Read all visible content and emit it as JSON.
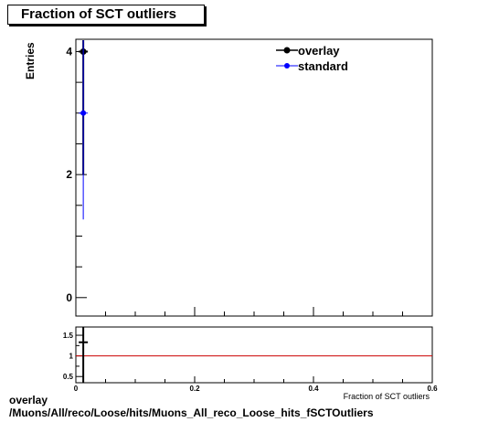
{
  "chart_data": {
    "type": "scatter",
    "title": "Fraction of SCT outliers",
    "ylabel": "Entries",
    "xlabel": "Fraction of SCT outliers",
    "xlim": [
      0,
      0.6
    ],
    "ylim": [
      -0.3,
      4.2
    ],
    "y_ticks": [
      0,
      2,
      4
    ],
    "x_ticks": [
      0,
      0.2,
      0.4,
      0.6
    ],
    "legend_position": "top-right",
    "series": [
      {
        "name": "overlay",
        "color": "#000000",
        "points": [
          {
            "x": 0.0125,
            "y": 4,
            "err": 2
          }
        ]
      },
      {
        "name": "standard",
        "color": "#0000ff",
        "points": [
          {
            "x": 0.0125,
            "y": 3,
            "err": 1.73
          }
        ]
      }
    ],
    "ratio": {
      "ylim": [
        0.35,
        1.7
      ],
      "y_ticks": [
        0.5,
        1,
        1.5
      ],
      "reference": 1,
      "reference_color": "#cc0000",
      "points": [
        {
          "x": 0.0125,
          "y": 1.33,
          "err": 1.0
        }
      ]
    }
  },
  "footer": {
    "line1": "overlay",
    "line2": "/Muons/All/reco/Loose/hits/Muons_All_reco_Loose_hits_fSCTOutliers"
  }
}
